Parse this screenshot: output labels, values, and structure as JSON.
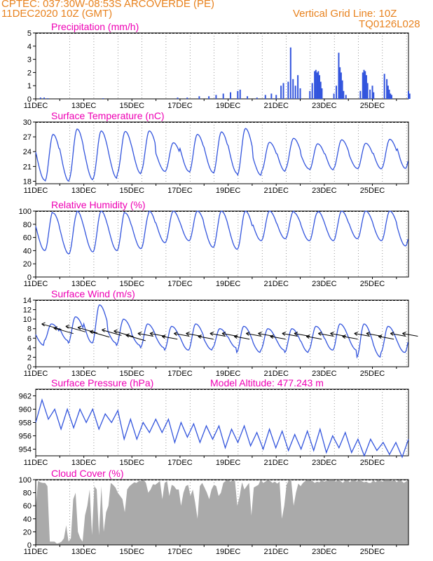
{
  "header": {
    "title": "CPTEC:   037:30W-08:53S   ARCOVERDE (PE)",
    "date": "11DEC2020 10Z (GMT)",
    "grid_line": "Vertical Grid Line: 10Z",
    "code": "TQ0126L028"
  },
  "x_tick_labels": [
    "11DEC",
    "13DEC",
    "15DEC",
    "17DEC",
    "19DEC",
    "21DEC",
    "23DEC",
    "25DEC"
  ],
  "colors": {
    "header": "#e8821e",
    "title": "#ee00b4",
    "line": "#3355dd",
    "cloud": "#aaaaaa",
    "wind": "#000000"
  },
  "chart_data": [
    {
      "id": "precip",
      "type": "bar",
      "title": "Precipitation (mm/h)",
      "ylim": [
        0,
        5
      ],
      "yticks": [
        0,
        1,
        2,
        3,
        4,
        5
      ],
      "x_units": "days since 11DEC 00Z",
      "bars": [
        [
          0.2,
          0.1
        ],
        [
          0.35,
          0.1
        ],
        [
          0.5,
          0.05
        ],
        [
          2.8,
          0.05
        ],
        [
          5.9,
          0.1
        ],
        [
          6.3,
          0.1
        ],
        [
          6.8,
          0.2
        ],
        [
          7.2,
          0.2
        ],
        [
          7.5,
          0.3
        ],
        [
          7.8,
          0.4
        ],
        [
          8.1,
          0.5
        ],
        [
          8.4,
          0.6
        ],
        [
          8.5,
          0.7
        ],
        [
          8.8,
          0.2
        ],
        [
          9.2,
          0.1
        ],
        [
          9.55,
          0.3
        ],
        [
          9.8,
          0.4
        ],
        [
          10.0,
          0.3
        ],
        [
          10.2,
          1.0
        ],
        [
          10.3,
          1.2
        ],
        [
          10.5,
          1.3
        ],
        [
          10.6,
          3.9
        ],
        [
          10.7,
          1.5
        ],
        [
          10.8,
          1.0
        ],
        [
          10.9,
          1.8
        ],
        [
          11.0,
          0.8
        ],
        [
          11.4,
          0.6
        ],
        [
          11.5,
          1.2
        ],
        [
          11.6,
          2.1
        ],
        [
          11.65,
          2.2
        ],
        [
          11.7,
          2.0
        ],
        [
          11.75,
          2.1
        ],
        [
          11.8,
          1.8
        ],
        [
          11.85,
          1.3
        ],
        [
          11.9,
          0.8
        ],
        [
          12.4,
          0.4
        ],
        [
          12.5,
          1.0
        ],
        [
          12.6,
          3.5
        ],
        [
          12.65,
          2.4
        ],
        [
          12.7,
          2.0
        ],
        [
          12.75,
          1.4
        ],
        [
          12.8,
          0.6
        ],
        [
          12.9,
          0.3
        ],
        [
          13.5,
          0.6
        ],
        [
          13.6,
          2.0
        ],
        [
          13.65,
          2.2
        ],
        [
          13.7,
          2.1
        ],
        [
          13.75,
          1.8
        ],
        [
          13.8,
          1.2
        ],
        [
          13.9,
          0.7
        ],
        [
          14.0,
          1.0
        ],
        [
          14.05,
          0.5
        ],
        [
          14.5,
          1.9
        ],
        [
          14.6,
          1.5
        ],
        [
          14.65,
          1.0
        ],
        [
          14.7,
          0.7
        ],
        [
          14.75,
          0.4
        ],
        [
          14.8,
          0.3
        ],
        [
          15.5,
          0.6
        ],
        [
          15.55,
          0.4
        ]
      ]
    },
    {
      "id": "temp",
      "type": "line",
      "title": "Surface Temperature (nC)",
      "ylim": [
        17.5,
        30
      ],
      "yticks": [
        18,
        21,
        24,
        27,
        30
      ],
      "daily_min": [
        18.2,
        18.0,
        18.3,
        18.6,
        19.5,
        20.0,
        20.0,
        19.8,
        19.6,
        19.2,
        20.0,
        20.5,
        20.3,
        20.6,
        20.5,
        20.6
      ],
      "daily_max": [
        27.5,
        28.6,
        28.2,
        28.1,
        28.2,
        25.8,
        27.5,
        28.0,
        28.7,
        25.9,
        26.7,
        25.6,
        26.4,
        25.7,
        26.5,
        28.1
      ]
    },
    {
      "id": "rh",
      "type": "line",
      "title": "Relative Humidity (%)",
      "ylim": [
        0,
        100
      ],
      "yticks": [
        0,
        20,
        40,
        60,
        80,
        100
      ],
      "daily_min": [
        40,
        35,
        38,
        40,
        43,
        52,
        55,
        45,
        42,
        55,
        58,
        55,
        55,
        58,
        55,
        47
      ],
      "daily_max": [
        100,
        97,
        100,
        100,
        97,
        100,
        100,
        100,
        100,
        100,
        100,
        98,
        100,
        100,
        100,
        100
      ]
    },
    {
      "id": "wind",
      "type": "line",
      "title": "Surface Wind (m/s)",
      "ylim": [
        0,
        14
      ],
      "yticks": [
        0,
        2,
        4,
        6,
        8,
        10,
        12,
        14
      ],
      "daily_min": [
        4.5,
        5.5,
        5.0,
        5.0,
        4.5,
        4.0,
        3.5,
        3.5,
        4.0,
        3.0,
        3.5,
        3.0,
        3.5,
        3.5,
        2.0,
        3.0
      ],
      "daily_max": [
        9.0,
        10.5,
        13.0,
        10.0,
        9.0,
        8.5,
        9.0,
        8.0,
        8.5,
        8.0,
        8.0,
        8.5,
        9.0,
        9.0,
        8.5,
        8.5
      ]
    },
    {
      "id": "pressure",
      "type": "line",
      "title": "Surface Pressure (hPa)",
      "subtitle": "Model Altitude: 477.243 m",
      "ylim": [
        953,
        963
      ],
      "yticks": [
        954,
        956,
        958,
        960,
        962
      ],
      "values": [
        958.0,
        961.4,
        958.5,
        960.0,
        957.0,
        960.0,
        957.2,
        960.0,
        958.0,
        960.0,
        957.0,
        959.3,
        958.0,
        959.8,
        955.5,
        958.5,
        955.5,
        958.0,
        956.5,
        958.5,
        956.5,
        958.5,
        955.0,
        958.0,
        955.8,
        957.8,
        955.0,
        957.5,
        955.5,
        957.5,
        954.2,
        957.0,
        955.0,
        957.5,
        954.5,
        956.5,
        954.0,
        957.0,
        954.2,
        956.7,
        953.8,
        956.2,
        954.0,
        956.7,
        953.8,
        957.0,
        953.5,
        956.0,
        954.2,
        956.5,
        953.5,
        955.5,
        953.0,
        955.5,
        953.8,
        955.0,
        953.2,
        955.0,
        952.8,
        955.5
      ]
    },
    {
      "id": "cloud",
      "type": "area",
      "title": "Cloud Cover (%)",
      "ylim": [
        0,
        100
      ],
      "yticks": [
        0,
        20,
        40,
        60,
        80,
        100
      ],
      "values": [
        55,
        98,
        96,
        95,
        95,
        90,
        5,
        5,
        5,
        2,
        3,
        5,
        10,
        30,
        5,
        10,
        70,
        80,
        20,
        10,
        5,
        45,
        60,
        85,
        15,
        90,
        85,
        15,
        90,
        20,
        50,
        60,
        95,
        92,
        88,
        80,
        75,
        70,
        50,
        85,
        90,
        93,
        96,
        95,
        98,
        98,
        100,
        95,
        80,
        85,
        93,
        92,
        95,
        98,
        70,
        95,
        98,
        75,
        92,
        90,
        85,
        85,
        60,
        80,
        90,
        92,
        75,
        85,
        65,
        40,
        90,
        95,
        88,
        80,
        70,
        85,
        92,
        90,
        75,
        80,
        95,
        98,
        100,
        97,
        99,
        98,
        60,
        75,
        96,
        85,
        90,
        95,
        45,
        88,
        90,
        92,
        100,
        95,
        97,
        100,
        98,
        95,
        97,
        94,
        97,
        40,
        60,
        92,
        100,
        98,
        60,
        80,
        94,
        90,
        95,
        98,
        100,
        99,
        98,
        95,
        97,
        96,
        100,
        97,
        98,
        99,
        100,
        100,
        97,
        100,
        98,
        95,
        99,
        100,
        96,
        100,
        99,
        97,
        100,
        98,
        96,
        97,
        95,
        95,
        99,
        96,
        100,
        98,
        97,
        100,
        100,
        99,
        98,
        100,
        96,
        100,
        98,
        95,
        97,
        100
      ]
    }
  ]
}
